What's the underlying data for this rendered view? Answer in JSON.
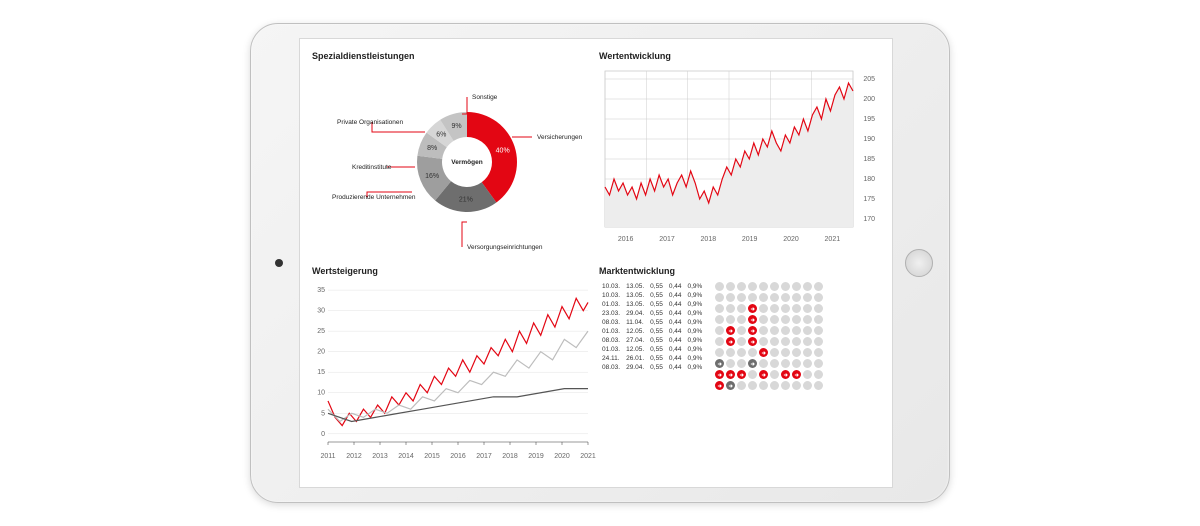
{
  "colors": {
    "accent": "#e30613",
    "grid": "#cccccc",
    "text": "#222222",
    "muted_text": "#666666",
    "grey_dot": "#d8d8d8",
    "dark_grey": "#6e6e6e"
  },
  "donut": {
    "title": "Spezialdienstleistungen",
    "center_label": "Vermögen",
    "slices": [
      {
        "label": "Versicherungen",
        "value": 40,
        "color": "#e30613",
        "pct_text": "40%"
      },
      {
        "label": "Versorgungseinrichtungen",
        "value": 21,
        "color": "#6e6e6e",
        "pct_text": "21%"
      },
      {
        "label": "Produzierende Unternehmen",
        "value": 16,
        "color": "#9e9e9e",
        "pct_text": "16%"
      },
      {
        "label": "Kreditinstitute",
        "value": 8,
        "color": "#bdbdbd",
        "pct_text": "8%"
      },
      {
        "label": "Private Organisationen",
        "value": 6,
        "color": "#d6d6d6",
        "pct_text": "6%"
      },
      {
        "label": "Sonstige",
        "value": 9,
        "color": "#c4c4c4",
        "pct_text": "9%"
      }
    ],
    "inner_radius": 0.5,
    "outer_radius": 1.0,
    "label_fontsize": 7
  },
  "perf": {
    "title": "Wertentwicklung",
    "x_years": [
      "2016",
      "2017",
      "2018",
      "2019",
      "2020",
      "2021"
    ],
    "y_ticks": [
      170,
      175,
      180,
      185,
      190,
      195,
      200,
      205
    ],
    "ylim": [
      168,
      207
    ],
    "line_color": "#e30613",
    "area_fill": "#ededed",
    "grid_color": "#cccccc",
    "bg": "#ffffff",
    "data": [
      [
        0,
        178
      ],
      [
        2,
        176
      ],
      [
        4,
        180
      ],
      [
        6,
        177
      ],
      [
        8,
        179
      ],
      [
        10,
        176
      ],
      [
        12,
        178
      ],
      [
        14,
        175
      ],
      [
        16,
        179
      ],
      [
        18,
        176
      ],
      [
        20,
        180
      ],
      [
        22,
        177
      ],
      [
        24,
        181
      ],
      [
        26,
        178
      ],
      [
        28,
        180
      ],
      [
        30,
        176
      ],
      [
        32,
        179
      ],
      [
        34,
        181
      ],
      [
        36,
        178
      ],
      [
        38,
        182
      ],
      [
        40,
        179
      ],
      [
        42,
        175
      ],
      [
        44,
        177
      ],
      [
        46,
        174
      ],
      [
        48,
        178
      ],
      [
        50,
        176
      ],
      [
        52,
        180
      ],
      [
        54,
        183
      ],
      [
        56,
        181
      ],
      [
        58,
        185
      ],
      [
        60,
        183
      ],
      [
        62,
        187
      ],
      [
        64,
        185
      ],
      [
        66,
        189
      ],
      [
        68,
        186
      ],
      [
        70,
        190
      ],
      [
        72,
        188
      ],
      [
        74,
        192
      ],
      [
        76,
        189
      ],
      [
        78,
        187
      ],
      [
        80,
        191
      ],
      [
        82,
        189
      ],
      [
        84,
        193
      ],
      [
        86,
        191
      ],
      [
        88,
        195
      ],
      [
        90,
        192
      ],
      [
        92,
        196
      ],
      [
        94,
        198
      ],
      [
        96,
        195
      ],
      [
        98,
        200
      ],
      [
        100,
        197
      ],
      [
        102,
        201
      ],
      [
        104,
        203
      ],
      [
        106,
        200
      ],
      [
        108,
        204
      ],
      [
        110,
        202
      ]
    ]
  },
  "growth": {
    "title": "Wertsteigerung",
    "x_years": [
      "2011",
      "2012",
      "2013",
      "2014",
      "2015",
      "2016",
      "2017",
      "2018",
      "2019",
      "2020",
      "2021"
    ],
    "y_ticks": [
      0,
      5,
      10,
      15,
      20,
      25,
      30,
      35
    ],
    "ylim": [
      -2,
      36
    ],
    "grid_color": "#e3e3e3",
    "series": [
      {
        "color": "#e30613",
        "data": [
          [
            0,
            8
          ],
          [
            3,
            4
          ],
          [
            6,
            2
          ],
          [
            9,
            5
          ],
          [
            12,
            3
          ],
          [
            15,
            6
          ],
          [
            18,
            4
          ],
          [
            21,
            7
          ],
          [
            24,
            5
          ],
          [
            27,
            9
          ],
          [
            30,
            7
          ],
          [
            33,
            10
          ],
          [
            36,
            8
          ],
          [
            39,
            12
          ],
          [
            42,
            10
          ],
          [
            45,
            14
          ],
          [
            48,
            12
          ],
          [
            51,
            16
          ],
          [
            54,
            14
          ],
          [
            57,
            18
          ],
          [
            60,
            15
          ],
          [
            63,
            19
          ],
          [
            66,
            17
          ],
          [
            69,
            21
          ],
          [
            72,
            19
          ],
          [
            75,
            23
          ],
          [
            78,
            20
          ],
          [
            81,
            25
          ],
          [
            84,
            22
          ],
          [
            87,
            27
          ],
          [
            90,
            24
          ],
          [
            93,
            29
          ],
          [
            96,
            26
          ],
          [
            99,
            31
          ],
          [
            102,
            28
          ],
          [
            105,
            33
          ],
          [
            108,
            30
          ],
          [
            110,
            32
          ]
        ]
      },
      {
        "color": "#bdbdbd",
        "data": [
          [
            0,
            6
          ],
          [
            5,
            3
          ],
          [
            10,
            5
          ],
          [
            15,
            4
          ],
          [
            20,
            6
          ],
          [
            25,
            5
          ],
          [
            30,
            7
          ],
          [
            35,
            6
          ],
          [
            40,
            9
          ],
          [
            45,
            8
          ],
          [
            50,
            11
          ],
          [
            55,
            10
          ],
          [
            60,
            13
          ],
          [
            65,
            12
          ],
          [
            70,
            15
          ],
          [
            75,
            14
          ],
          [
            80,
            18
          ],
          [
            85,
            16
          ],
          [
            90,
            20
          ],
          [
            95,
            18
          ],
          [
            100,
            23
          ],
          [
            105,
            21
          ],
          [
            110,
            25
          ]
        ]
      },
      {
        "color": "#555555",
        "data": [
          [
            0,
            5
          ],
          [
            10,
            3
          ],
          [
            20,
            4
          ],
          [
            30,
            5
          ],
          [
            40,
            6
          ],
          [
            50,
            7
          ],
          [
            60,
            8
          ],
          [
            70,
            9
          ],
          [
            80,
            9
          ],
          [
            90,
            10
          ],
          [
            100,
            11
          ],
          [
            110,
            11
          ]
        ]
      }
    ]
  },
  "market": {
    "title": "Marktentwicklung",
    "columns": [
      "d1",
      "d2",
      "v1",
      "v2",
      "pct"
    ],
    "rows": [
      [
        "10.03.",
        "13.05.",
        "0,55",
        "0,44",
        "0,9%"
      ],
      [
        "10.03.",
        "13.05.",
        "0,55",
        "0,44",
        "0,9%"
      ],
      [
        "01.03.",
        "13.05.",
        "0,55",
        "0,44",
        "0,9%"
      ],
      [
        "23.03.",
        "29.04.",
        "0,55",
        "0,44",
        "0,9%"
      ],
      [
        "08.03.",
        "11.04.",
        "0,55",
        "0,44",
        "0,9%"
      ],
      [
        "01.03.",
        "12.05.",
        "0,55",
        "0,44",
        "0,9%"
      ],
      [
        "08.03.",
        "27.04.",
        "0,55",
        "0,44",
        "0,9%"
      ],
      [
        "01.03.",
        "12.05.",
        "0,55",
        "0,44",
        "0,9%"
      ],
      [
        "24.11.",
        "26.01.",
        "0,55",
        "0,44",
        "0,9%"
      ],
      [
        "08.03.",
        "29.04.",
        "0,55",
        "0,44",
        "0,9%"
      ]
    ],
    "dot_colors": {
      "g": "#d8d8d8",
      "r": "#e30613",
      "d": "#6e6e6e"
    },
    "dots": [
      [
        "g",
        "g",
        "g",
        "g",
        "g",
        "g",
        "g",
        "g",
        "g",
        "g"
      ],
      [
        "g",
        "g",
        "g",
        "g",
        "g",
        "g",
        "g",
        "g",
        "g",
        "g"
      ],
      [
        "g",
        "g",
        "g",
        "r",
        "g",
        "g",
        "g",
        "g",
        "g",
        "g"
      ],
      [
        "g",
        "g",
        "g",
        "r",
        "g",
        "g",
        "g",
        "g",
        "g",
        "g"
      ],
      [
        "g",
        "r",
        "g",
        "r",
        "g",
        "g",
        "g",
        "g",
        "g",
        "g"
      ],
      [
        "g",
        "r",
        "g",
        "r",
        "g",
        "g",
        "g",
        "g",
        "g",
        "g"
      ],
      [
        "g",
        "g",
        "g",
        "g",
        "r",
        "g",
        "g",
        "g",
        "g",
        "g"
      ],
      [
        "d",
        "g",
        "g",
        "d",
        "g",
        "g",
        "g",
        "g",
        "g",
        "g"
      ],
      [
        "r",
        "r",
        "r",
        "g",
        "r",
        "g",
        "r",
        "r",
        "g",
        "g"
      ],
      [
        "r",
        "d",
        "g",
        "g",
        "g",
        "g",
        "g",
        "g",
        "g",
        "g"
      ]
    ]
  }
}
